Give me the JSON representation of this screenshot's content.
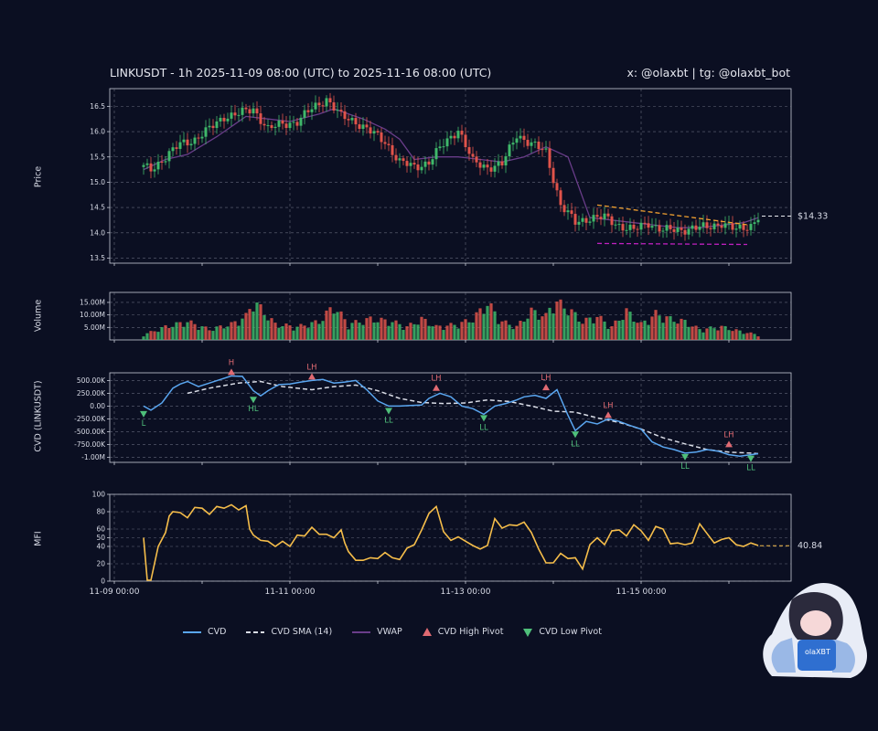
{
  "header": {
    "title": "LINKUSDT - 1h 2025-11-09 08:00 (UTC) to 2025-11-16 08:00 (UTC)",
    "social": "x: @olaxbt | tg: @olaxbt_bot"
  },
  "colors": {
    "background": "#0b0f22",
    "up": "#3fb86a",
    "down": "#e0534a",
    "cvd": "#5aa6f0",
    "cvd_sma": "#d9dce6",
    "vwap": "#6a3d8a",
    "mfi": "#f5bd4a",
    "high_pivot": "#e06a72",
    "low_pivot": "#4fbf7a",
    "trend_upper": "#f0a030",
    "trend_lower": "#c020c0"
  },
  "legend": [
    {
      "label": "CVD",
      "icon": "solid-line"
    },
    {
      "label": "CVD SMA (14)",
      "icon": "dashed-line"
    },
    {
      "label": "VWAP",
      "icon": "solid-line"
    },
    {
      "label": "CVD High Pivot",
      "icon": "triangle-up-icon"
    },
    {
      "label": "CVD Low Pivot",
      "icon": "triangle-down-icon"
    }
  ],
  "chart_data": [
    {
      "type": "candlestick",
      "ylabel": "Price",
      "ylim": [
        13.4,
        16.85
      ],
      "yticks": [
        "16.5",
        "16.0",
        "15.5",
        "15.0",
        "14.5",
        "14.0",
        "13.5"
      ],
      "ytick_values": [
        16.5,
        16.0,
        15.5,
        15.0,
        14.5,
        14.0,
        13.5
      ],
      "last_price_label": "$14.33",
      "last_price": 14.33,
      "anchors": {
        "x": [
          0,
          2,
          6,
          10,
          14,
          18,
          22,
          26,
          30,
          34,
          38,
          42,
          46,
          50,
          54,
          58,
          62,
          66,
          70,
          74,
          78,
          82,
          86,
          90,
          94,
          98,
          102,
          106,
          110,
          114,
          118,
          122,
          126,
          130,
          134,
          138,
          142,
          146,
          150,
          154,
          158,
          162,
          166,
          168
        ],
        "close": [
          15.3,
          15.25,
          15.5,
          15.75,
          15.85,
          16.05,
          16.3,
          16.35,
          16.45,
          16.05,
          16.15,
          16.2,
          16.45,
          16.65,
          16.3,
          16.2,
          16.0,
          15.8,
          15.4,
          15.3,
          15.4,
          15.75,
          16.05,
          15.4,
          15.3,
          15.35,
          15.95,
          15.75,
          15.6,
          14.55,
          14.2,
          14.3,
          14.3,
          14.15,
          14.05,
          14.2,
          14.05,
          14.05,
          14.1,
          14.1,
          14.2,
          14.05,
          14.15,
          14.33
        ]
      },
      "vwap": {
        "x": [
          0,
          6,
          12,
          20,
          28,
          34,
          40,
          48,
          52,
          60,
          66,
          70,
          74,
          80,
          86,
          92,
          98,
          104,
          110,
          116,
          122,
          128,
          134,
          140,
          146,
          152,
          158,
          164,
          168
        ],
        "values": [
          15.25,
          15.45,
          15.55,
          15.9,
          16.3,
          16.25,
          16.2,
          16.35,
          16.45,
          16.25,
          16.05,
          15.85,
          15.45,
          15.5,
          15.5,
          15.45,
          15.4,
          15.5,
          15.7,
          15.5,
          14.3,
          14.25,
          14.2,
          14.15,
          14.1,
          14.1,
          14.15,
          14.2,
          14.3
        ]
      },
      "trendlines": [
        {
          "name": "upper",
          "from": [
            124,
            14.55
          ],
          "to": [
            165,
            14.16
          ]
        },
        {
          "name": "lower",
          "from": [
            124,
            13.79
          ],
          "to": [
            165,
            13.77
          ]
        }
      ]
    },
    {
      "type": "bar",
      "ylabel": "Volume",
      "ylim": [
        0,
        19000000
      ],
      "yticks": [
        "15.00M",
        "10.00M",
        "5.00M"
      ],
      "ytick_values": [
        15000000,
        10000000,
        5000000
      ],
      "anchors": {
        "x": [
          0,
          6,
          12,
          18,
          24,
          28,
          30,
          36,
          42,
          48,
          52,
          56,
          62,
          68,
          72,
          76,
          80,
          86,
          90,
          94,
          98,
          102,
          106,
          110,
          112,
          116,
          120,
          124,
          128,
          132,
          136,
          140,
          144,
          148,
          152,
          158,
          164,
          168
        ],
        "values": [
          2000000,
          5000000,
          7000000,
          4000000,
          6000000,
          9000000,
          15000000,
          6000000,
          5000000,
          7000000,
          13000000,
          6000000,
          8000000,
          7000000,
          5000000,
          8000000,
          5000000,
          6000000,
          8000000,
          14000000,
          7000000,
          5000000,
          11000000,
          9000000,
          15000000,
          12000000,
          7000000,
          9000000,
          5000000,
          11000000,
          6000000,
          10000000,
          8000000,
          7000000,
          4000000,
          5000000,
          3000000,
          2000000
        ]
      }
    },
    {
      "type": "line",
      "ylabel": "CVD (LINKUSDT)",
      "ylim": [
        -1100000,
        650000
      ],
      "yticks": [
        "500.00K",
        "250.00K",
        "0.00",
        "-250.00K",
        "-500.00K",
        "-750.00K",
        "-1.00M"
      ],
      "ytick_values": [
        500000,
        250000,
        0,
        -250000,
        -500000,
        -750000,
        -1000000
      ],
      "cvd": {
        "x": [
          0,
          2,
          5,
          8,
          10,
          12,
          15,
          18,
          21,
          24,
          27,
          30,
          32,
          34,
          37,
          40,
          43,
          46,
          49,
          52,
          55,
          58,
          61,
          64,
          67,
          70,
          73,
          76,
          78,
          81,
          84,
          87,
          90,
          93,
          96,
          99,
          102,
          104,
          107,
          110,
          113,
          116,
          118,
          121,
          124,
          127,
          130,
          133,
          136,
          139,
          142,
          145,
          148,
          151,
          154,
          157,
          160,
          163,
          166,
          168
        ],
        "values": [
          0,
          -80000,
          60000,
          350000,
          430000,
          480000,
          380000,
          450000,
          520000,
          590000,
          580000,
          300000,
          200000,
          300000,
          420000,
          430000,
          470000,
          500000,
          520000,
          450000,
          470000,
          500000,
          320000,
          100000,
          0,
          0,
          10000,
          20000,
          150000,
          250000,
          180000,
          0,
          -50000,
          -160000,
          0,
          50000,
          120000,
          180000,
          210000,
          150000,
          320000,
          -180000,
          -480000,
          -300000,
          -350000,
          -250000,
          -300000,
          -380000,
          -450000,
          -700000,
          -800000,
          -850000,
          -920000,
          -900000,
          -850000,
          -880000,
          -950000,
          -980000,
          -950000,
          -930000
        ]
      },
      "cvd_sma": {
        "x": [
          12,
          18,
          26,
          32,
          38,
          46,
          52,
          58,
          64,
          70,
          76,
          82,
          88,
          94,
          100,
          106,
          112,
          118,
          124,
          130,
          136,
          142,
          148,
          154,
          160,
          166,
          168
        ],
        "values": [
          250000,
          350000,
          450000,
          480000,
          380000,
          320000,
          380000,
          410000,
          300000,
          150000,
          70000,
          50000,
          60000,
          120000,
          90000,
          0,
          -100000,
          -120000,
          -230000,
          -320000,
          -450000,
          -620000,
          -740000,
          -850000,
          -900000,
          -920000,
          -930000
        ]
      },
      "pivots": [
        {
          "type": "low",
          "label": "L",
          "x": 0,
          "y": -80000
        },
        {
          "type": "high",
          "label": "H",
          "x": 24,
          "y": 590000
        },
        {
          "type": "low",
          "label": "HL",
          "x": 30,
          "y": 200000
        },
        {
          "type": "high",
          "label": "LH",
          "x": 46,
          "y": 500000
        },
        {
          "type": "low",
          "label": "LL",
          "x": 67,
          "y": -20000
        },
        {
          "type": "high",
          "label": "LH",
          "x": 80,
          "y": 280000
        },
        {
          "type": "low",
          "label": "LL",
          "x": 93,
          "y": -160000
        },
        {
          "type": "high",
          "label": "LH",
          "x": 110,
          "y": 290000
        },
        {
          "type": "low",
          "label": "LL",
          "x": 118,
          "y": -480000
        },
        {
          "type": "high",
          "label": "LH",
          "x": 127,
          "y": -250000
        },
        {
          "type": "low",
          "label": "LL",
          "x": 148,
          "y": -920000
        },
        {
          "type": "high",
          "label": "LH",
          "x": 160,
          "y": -820000
        },
        {
          "type": "low",
          "label": "LL",
          "x": 166,
          "y": -950000
        }
      ]
    },
    {
      "type": "line",
      "ylabel": "MFI",
      "ylim": [
        0,
        100
      ],
      "yticks": [
        "100",
        "80",
        "60",
        "50",
        "40",
        "20",
        "0"
      ],
      "ytick_values": [
        100,
        80,
        60,
        50,
        40,
        20,
        0
      ],
      "last_value_label": "40.84",
      "last_value": 40.84,
      "xticks": [
        "11-09 00:00",
        "11-11 00:00",
        "11-13 00:00",
        "11-15 00:00"
      ],
      "xtick_values": [
        -8,
        40,
        88,
        136
      ],
      "mfi": {
        "x": [
          0,
          1,
          2,
          4,
          6,
          7,
          8,
          10,
          12,
          14,
          16,
          18,
          20,
          22,
          24,
          26,
          28,
          29,
          30,
          32,
          34,
          36,
          38,
          40,
          42,
          44,
          46,
          48,
          50,
          52,
          54,
          55,
          56,
          58,
          60,
          62,
          64,
          66,
          68,
          70,
          72,
          74,
          76,
          78,
          80,
          82,
          84,
          86,
          88,
          90,
          92,
          94,
          96,
          98,
          100,
          102,
          104,
          106,
          108,
          110,
          112,
          114,
          116,
          118,
          120,
          122,
          124,
          126,
          128,
          130,
          132,
          134,
          136,
          138,
          140,
          142,
          144,
          146,
          148,
          150,
          152,
          154,
          156,
          158,
          160,
          162,
          164,
          166,
          168
        ],
        "values": [
          50,
          1,
          1,
          40,
          56,
          75,
          80,
          79,
          73,
          85,
          84,
          77,
          86,
          84,
          88,
          82,
          87,
          60,
          53,
          47,
          46,
          40,
          46,
          40,
          53,
          52,
          62,
          54,
          54,
          50,
          59,
          44,
          34,
          24,
          24,
          27,
          26,
          33,
          27,
          25,
          38,
          42,
          59,
          78,
          86,
          57,
          47,
          51,
          46,
          41,
          37,
          41,
          72,
          61,
          65,
          64,
          68,
          56,
          37,
          21,
          21,
          32,
          26,
          27,
          14,
          42,
          50,
          42,
          58,
          59,
          52,
          65,
          58,
          47,
          63,
          60,
          43,
          44,
          42,
          44,
          66,
          55,
          44,
          48,
          50,
          42,
          40,
          44,
          41
        ]
      }
    }
  ]
}
